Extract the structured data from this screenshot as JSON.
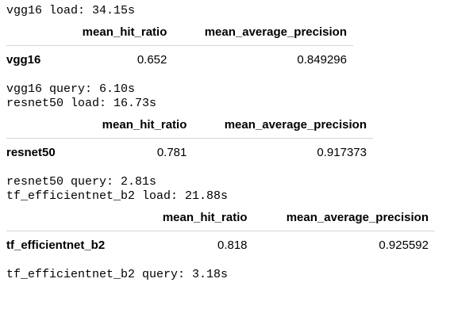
{
  "outputs": {
    "vgg16_load": "vgg16 load: 34.15s",
    "vgg16_query": "vgg16 query: 6.10s",
    "resnet50_load": "resnet50 load: 16.73s",
    "resnet50_query": "resnet50 query: 2.81s",
    "effnet_load": "tf_efficientnet_b2 load: 21.88s",
    "effnet_query": "tf_efficientnet_b2 query: 3.18s"
  },
  "columns": {
    "hit_ratio": "mean_hit_ratio",
    "map": "mean_average_precision"
  },
  "tables": {
    "vgg16": {
      "index": "vgg16",
      "hit_ratio": "0.652",
      "map": "0.849296"
    },
    "resnet50": {
      "index": "resnet50",
      "hit_ratio": "0.781",
      "map": "0.917373"
    },
    "effnet": {
      "index": "tf_efficientnet_b2",
      "hit_ratio": "0.818",
      "map": "0.925592"
    }
  }
}
